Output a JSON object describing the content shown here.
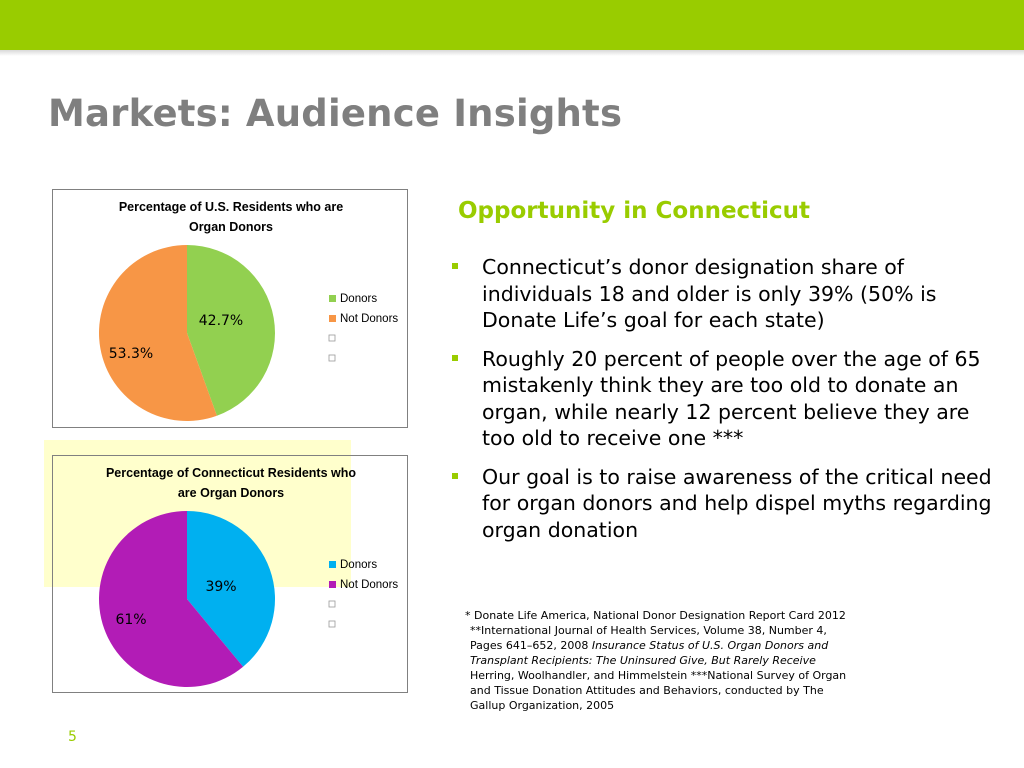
{
  "slide": {
    "title": "Markets: Audience Insights",
    "subtitle": "Opportunity in Connecticut",
    "page_number": "5",
    "colors": {
      "accent": "#99cc00",
      "title_gray": "#7f7f7f",
      "highlight": "#ffffcc"
    }
  },
  "bullets": [
    "Connecticut’s donor designation share of individuals 18 and older is only 39% (50% is Donate Life’s goal for each state)",
    "Roughly 20 percent of people over the age of 65 mistakenly think they are too old to donate an organ, while nearly 12 percent believe they are too old to receive one ***",
    "Our goal is to raise awareness of the critical need for organ donors and help dispel myths regarding organ donation"
  ],
  "footnote": {
    "line1": "* Donate Life America, National Donor Designation Report Card 2012",
    "line2": "**International Journal of Health Services, Volume 38, Number 4,",
    "line3_a": "Pages 641–652, 2008 ",
    "line3_b": "Insurance Status of U.S. Organ Donors and",
    "line4": "Transplant Recipients: The Uninsured Give, But Rarely Receive",
    "line5": "Herring, Woolhandler, and Himmelstein ***National Survey of Organ",
    "line6": "and Tissue Donation Attitudes and Behaviors, conducted by The",
    "line7": "Gallup Organization, 2005"
  },
  "chart_data": [
    {
      "type": "pie",
      "title_lines": [
        "Percentage of U.S. Residents who are",
        "Organ Donors"
      ],
      "categories": [
        "Donors",
        "Not Donors"
      ],
      "values": [
        42.7,
        53.3
      ],
      "labels": [
        "42.7%",
        "53.3%"
      ],
      "colors": [
        "#92d050",
        "#f79646"
      ],
      "legend_position": "right",
      "legend_empty_entries": 2
    },
    {
      "type": "pie",
      "title_lines": [
        "Percentage of Connecticut Residents who",
        "are Organ Donors"
      ],
      "categories": [
        "Donors",
        "Not Donors"
      ],
      "values": [
        39,
        61
      ],
      "labels": [
        "39%",
        "61%"
      ],
      "colors": [
        "#00b0f0",
        "#b21cb6"
      ],
      "legend_position": "right",
      "legend_empty_entries": 2
    }
  ]
}
